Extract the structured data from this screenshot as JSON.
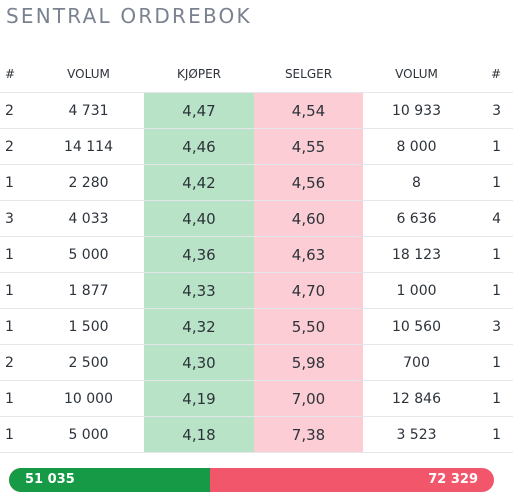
{
  "title": "SENTRAL ORDREBOK",
  "headers": [
    "#",
    "VOLUM",
    "KJØPER",
    "SELGER",
    "VOLUM",
    "#"
  ],
  "rows": [
    {
      "bid_count": "2",
      "bid_volume": "4 731",
      "bid_price": "4,47",
      "ask_price": "4,54",
      "ask_volume": "10 933",
      "ask_count": "3"
    },
    {
      "bid_count": "2",
      "bid_volume": "14 114",
      "bid_price": "4,46",
      "ask_price": "4,55",
      "ask_volume": "8 000",
      "ask_count": "1"
    },
    {
      "bid_count": "1",
      "bid_volume": "2 280",
      "bid_price": "4,42",
      "ask_price": "4,56",
      "ask_volume": "8",
      "ask_count": "1"
    },
    {
      "bid_count": "3",
      "bid_volume": "4 033",
      "bid_price": "4,40",
      "ask_price": "4,60",
      "ask_volume": "6 636",
      "ask_count": "4"
    },
    {
      "bid_count": "1",
      "bid_volume": "5 000",
      "bid_price": "4,36",
      "ask_price": "4,63",
      "ask_volume": "18 123",
      "ask_count": "1"
    },
    {
      "bid_count": "1",
      "bid_volume": "1 877",
      "bid_price": "4,33",
      "ask_price": "4,70",
      "ask_volume": "1 000",
      "ask_count": "1"
    },
    {
      "bid_count": "1",
      "bid_volume": "1 500",
      "bid_price": "4,32",
      "ask_price": "5,50",
      "ask_volume": "10 560",
      "ask_count": "3"
    },
    {
      "bid_count": "2",
      "bid_volume": "2 500",
      "bid_price": "4,30",
      "ask_price": "5,98",
      "ask_volume": "700",
      "ask_count": "1"
    },
    {
      "bid_count": "1",
      "bid_volume": "10 000",
      "bid_price": "4,19",
      "ask_price": "7,00",
      "ask_volume": "12 846",
      "ask_count": "1"
    },
    {
      "bid_count": "1",
      "bid_volume": "5 000",
      "bid_price": "4,18",
      "ask_price": "7,38",
      "ask_volume": "3 523",
      "ask_count": "1"
    }
  ],
  "totals": {
    "buy_volume": "51 035",
    "sell_volume": "72 329",
    "buy_share": 0.4137,
    "buy_color": "#169a45",
    "sell_color": "#f2566b"
  },
  "colors": {
    "bid_cell": "#b8e3c6",
    "ask_cell": "#fdcdd6"
  }
}
